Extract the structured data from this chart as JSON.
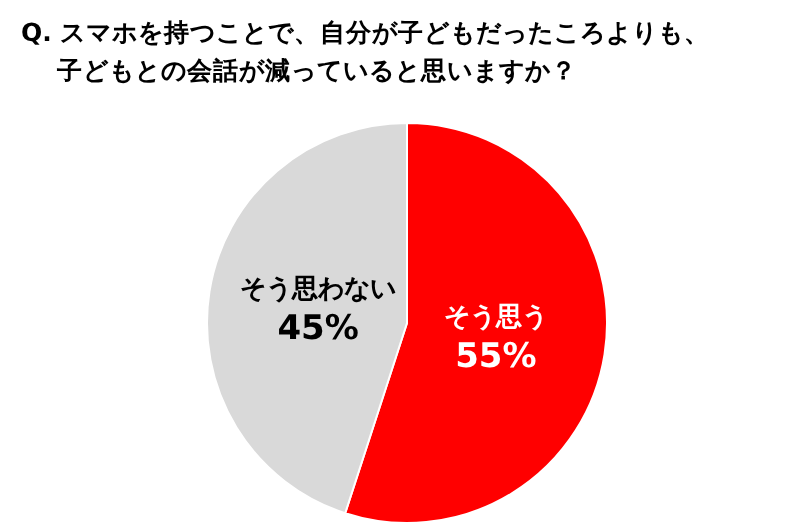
{
  "chart_data": {
    "type": "pie",
    "title": "Q. スマホを持つことで、自分が子どもだったころよりも、子どもとの会話が減っていると思いますか？",
    "categories": [
      "そう思う",
      "そう思わない"
    ],
    "values": [
      55,
      45
    ],
    "value_labels": [
      "55%",
      "45%"
    ],
    "colors": [
      "#ff0000",
      "#d9d9d9"
    ]
  }
}
